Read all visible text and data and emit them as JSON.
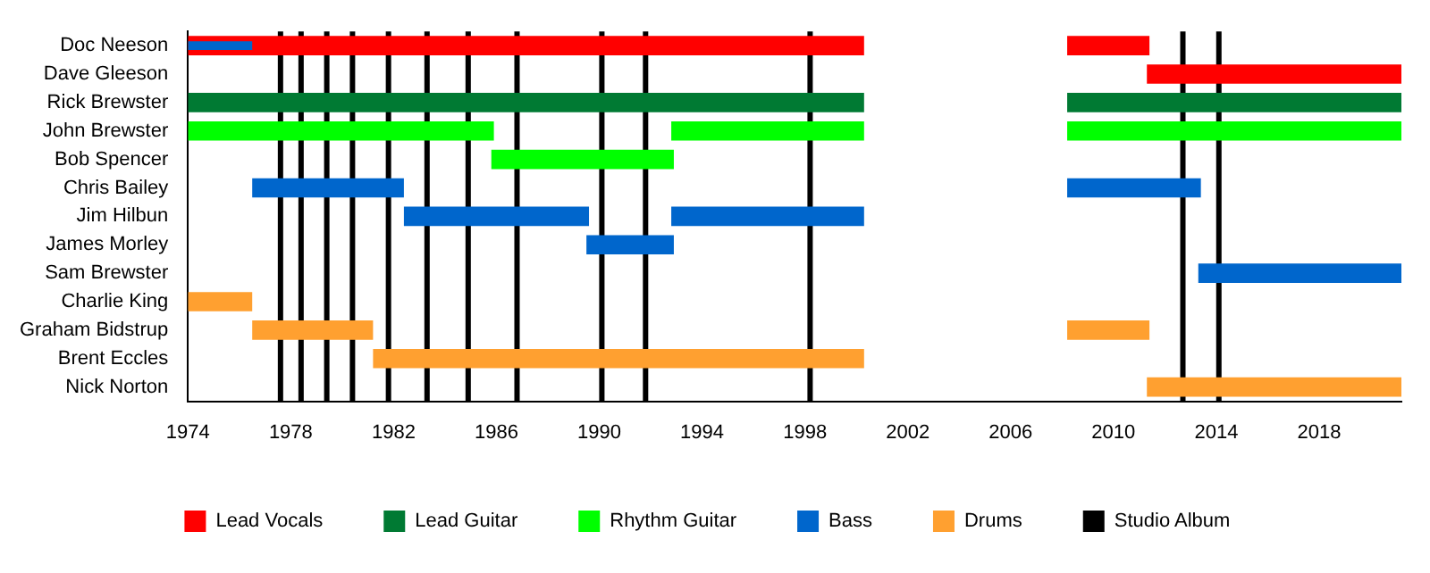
{
  "chart_data": {
    "type": "bar",
    "orientation": "horizontal",
    "legend": "bottom",
    "grid": false,
    "categories": [
      "Doc Neeson",
      "Dave Gleeson",
      "Rick Brewster",
      "John Brewster",
      "Bob Spencer",
      "Chris Bailey",
      "Jim Hilbun",
      "James Morley",
      "Sam Brewster",
      "Charlie King",
      "Graham Bidstrup",
      "Brent Eccles",
      "Nick Norton"
    ],
    "xlim": [
      1974,
      2021.2
    ],
    "xticks": [
      1974,
      1978,
      1982,
      1986,
      1990,
      1994,
      1998,
      2002,
      2006,
      2010,
      2014,
      2018
    ],
    "series": [
      {
        "name": "Lead Vocals",
        "color": "#ff0000",
        "base": [
          1974,
          2011.3,
          null,
          null,
          null,
          null,
          null,
          null,
          null,
          null,
          null,
          null,
          null
        ],
        "values": [
          26.3,
          9.9,
          null,
          null,
          null,
          null,
          null,
          null,
          null,
          null,
          null,
          null,
          null
        ]
      },
      {
        "color": "#ff0000",
        "base": [
          2008.2,
          null,
          null,
          null,
          null,
          null,
          null,
          null,
          null,
          null,
          null,
          null,
          null
        ],
        "values": [
          3.2,
          null,
          null,
          null,
          null,
          null,
          null,
          null,
          null,
          null,
          null,
          null,
          null
        ]
      },
      {
        "name": "Lead Guitar",
        "color": "#007a33",
        "base": [
          null,
          null,
          1974,
          null,
          null,
          null,
          null,
          null,
          null,
          null,
          null,
          null,
          null
        ],
        "values": [
          null,
          null,
          26.3,
          null,
          null,
          null,
          null,
          null,
          null,
          null,
          null,
          null,
          null
        ]
      },
      {
        "color": "#007a33",
        "base": [
          null,
          null,
          2008.2,
          null,
          null,
          null,
          null,
          null,
          null,
          null,
          null,
          null,
          null
        ],
        "values": [
          null,
          null,
          13.0,
          null,
          null,
          null,
          null,
          null,
          null,
          null,
          null,
          null,
          null
        ]
      },
      {
        "name": "Rhythm Guitar",
        "color": "#00ff00",
        "base": [
          null,
          null,
          null,
          1974,
          1985.8,
          null,
          null,
          null,
          null,
          null,
          null,
          null,
          null
        ],
        "values": [
          null,
          null,
          null,
          11.9,
          7.1,
          null,
          null,
          null,
          null,
          null,
          null,
          null,
          null
        ]
      },
      {
        "color": "#00ff00",
        "base": [
          null,
          null,
          null,
          1992.8,
          null,
          null,
          null,
          null,
          null,
          null,
          null,
          null,
          null
        ],
        "values": [
          null,
          null,
          null,
          7.5,
          null,
          null,
          null,
          null,
          null,
          null,
          null,
          null,
          null
        ]
      },
      {
        "color": "#00ff00",
        "base": [
          null,
          null,
          null,
          2008.2,
          null,
          null,
          null,
          null,
          null,
          null,
          null,
          null,
          null
        ],
        "values": [
          null,
          null,
          null,
          13.0,
          null,
          null,
          null,
          null,
          null,
          null,
          null,
          null,
          null
        ]
      },
      {
        "name": "Bass",
        "color": "#0066cc",
        "base": [
          null,
          null,
          null,
          null,
          null,
          1976.5,
          1982.4,
          1989.5,
          2013.3,
          null,
          null,
          null,
          null
        ],
        "values": [
          null,
          null,
          null,
          null,
          null,
          5.9,
          7.2,
          3.4,
          7.9,
          null,
          null,
          null,
          null
        ]
      },
      {
        "color": "#0066cc",
        "base": [
          null,
          null,
          null,
          null,
          null,
          2008.2,
          1992.8,
          null,
          null,
          null,
          null,
          null,
          null
        ],
        "values": [
          null,
          null,
          null,
          null,
          null,
          5.2,
          7.5,
          null,
          null,
          null,
          null,
          null,
          null
        ]
      },
      {
        "color": "#0066cc",
        "base": [
          1974,
          null,
          null,
          null,
          null,
          null,
          null,
          null,
          null,
          null,
          null,
          null,
          null
        ],
        "values": [
          2.5,
          null,
          null,
          null,
          null,
          null,
          null,
          null,
          null,
          null,
          null,
          null,
          null
        ]
      },
      {
        "name": "Drums",
        "color": "#ffa030",
        "base": [
          null,
          null,
          null,
          null,
          null,
          null,
          null,
          null,
          null,
          1974,
          1976.5,
          1981.2,
          2011.3
        ],
        "values": [
          null,
          null,
          null,
          null,
          null,
          null,
          null,
          null,
          null,
          2.5,
          4.7,
          19.1,
          9.9
        ]
      },
      {
        "color": "#ffa030",
        "base": [
          null,
          null,
          null,
          null,
          null,
          null,
          null,
          null,
          null,
          null,
          2008.2,
          null,
          null
        ],
        "values": [
          null,
          null,
          null,
          null,
          null,
          null,
          null,
          null,
          null,
          null,
          3.2,
          null,
          null
        ]
      }
    ],
    "ref_lines": [
      {
        "axis": "x",
        "value": 1977.6,
        "label": "Studio Album",
        "color": "#000000"
      },
      {
        "axis": "x",
        "value": 1978.4,
        "color": "#000000"
      },
      {
        "axis": "x",
        "value": 1979.4,
        "color": "#000000"
      },
      {
        "axis": "x",
        "value": 1980.4,
        "color": "#000000"
      },
      {
        "axis": "x",
        "value": 1981.8,
        "color": "#000000"
      },
      {
        "axis": "x",
        "value": 1983.3,
        "color": "#000000"
      },
      {
        "axis": "x",
        "value": 1984.9,
        "color": "#000000"
      },
      {
        "axis": "x",
        "value": 1986.8,
        "color": "#000000"
      },
      {
        "axis": "x",
        "value": 1990.1,
        "color": "#000000"
      },
      {
        "axis": "x",
        "value": 1991.8,
        "color": "#000000"
      },
      {
        "axis": "x",
        "value": 1998.2,
        "color": "#000000"
      },
      {
        "axis": "x",
        "value": 2012.7,
        "color": "#000000"
      },
      {
        "axis": "x",
        "value": 2014.1,
        "color": "#000000"
      }
    ]
  }
}
